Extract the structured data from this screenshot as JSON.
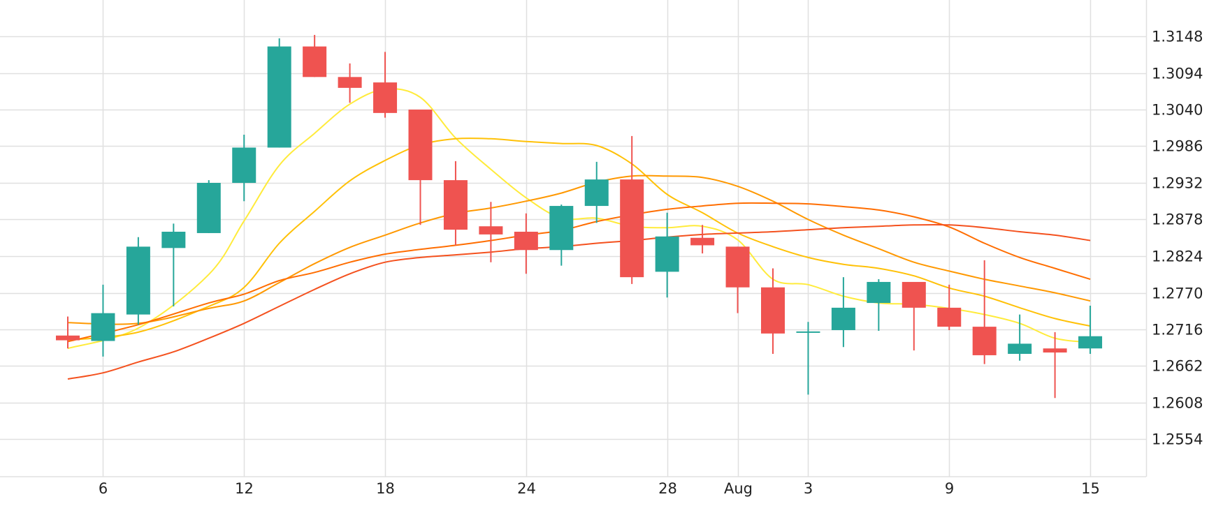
{
  "chart_data": {
    "type": "candlestick",
    "title": "",
    "xlabel": "",
    "ylabel": "",
    "ylim": [
      1.25,
      1.319
    ],
    "y_ticks": [
      "1.3148",
      "1.3094",
      "1.3040",
      "1.2986",
      "1.2932",
      "1.2878",
      "1.2824",
      "1.2770",
      "1.2716",
      "1.2662",
      "1.2608",
      "1.2554"
    ],
    "x_ticks": [
      {
        "i": 1,
        "label": "6"
      },
      {
        "i": 5,
        "label": "12"
      },
      {
        "i": 9,
        "label": "18"
      },
      {
        "i": 13,
        "label": "24"
      },
      {
        "i": 17,
        "label": "28"
      },
      {
        "i": 19,
        "label": "Aug"
      },
      {
        "i": 21,
        "label": "3"
      },
      {
        "i": 25,
        "label": "9"
      },
      {
        "i": 29,
        "label": "15"
      }
    ],
    "grid": true,
    "colors": {
      "up": "#26a69a",
      "down": "#ef5350",
      "grid": "#e0e0e0"
    },
    "candles": [
      {
        "o": 1.2707,
        "h": 1.2735,
        "l": 1.2688,
        "c": 1.27
      },
      {
        "o": 1.2699,
        "h": 1.2782,
        "l": 1.2676,
        "c": 1.274
      },
      {
        "o": 1.2738,
        "h": 1.2852,
        "l": 1.2723,
        "c": 1.2838
      },
      {
        "o": 1.2836,
        "h": 1.2872,
        "l": 1.275,
        "c": 1.286
      },
      {
        "o": 1.2858,
        "h": 1.2936,
        "l": 1.2858,
        "c": 1.2932
      },
      {
        "o": 1.2932,
        "h": 1.3003,
        "l": 1.2905,
        "c": 1.2984
      },
      {
        "o": 1.2984,
        "h": 1.3145,
        "l": 1.2984,
        "c": 1.3133
      },
      {
        "o": 1.3133,
        "h": 1.315,
        "l": 1.3088,
        "c": 1.3088
      },
      {
        "o": 1.3088,
        "h": 1.3108,
        "l": 1.305,
        "c": 1.3072
      },
      {
        "o": 1.308,
        "h": 1.3125,
        "l": 1.3028,
        "c": 1.3035
      },
      {
        "o": 1.304,
        "h": 1.304,
        "l": 1.287,
        "c": 1.2936
      },
      {
        "o": 1.2936,
        "h": 1.2964,
        "l": 1.284,
        "c": 1.2863
      },
      {
        "o": 1.2868,
        "h": 1.2904,
        "l": 1.2815,
        "c": 1.2856
      },
      {
        "o": 1.286,
        "h": 1.2887,
        "l": 1.2798,
        "c": 1.2833
      },
      {
        "o": 1.2833,
        "h": 1.29,
        "l": 1.281,
        "c": 1.2898
      },
      {
        "o": 1.2898,
        "h": 1.2963,
        "l": 1.2873,
        "c": 1.2937
      },
      {
        "o": 1.2937,
        "h": 1.3001,
        "l": 1.2783,
        "c": 1.2793
      },
      {
        "o": 1.2801,
        "h": 1.2888,
        "l": 1.2763,
        "c": 1.2853
      },
      {
        "o": 1.2851,
        "h": 1.287,
        "l": 1.2828,
        "c": 1.284
      },
      {
        "o": 1.2838,
        "h": 1.2838,
        "l": 1.274,
        "c": 1.2778
      },
      {
        "o": 1.2778,
        "h": 1.2806,
        "l": 1.268,
        "c": 1.271
      },
      {
        "o": 1.2712,
        "h": 1.2727,
        "l": 1.262,
        "c": 1.2712
      },
      {
        "o": 1.2715,
        "h": 1.2793,
        "l": 1.269,
        "c": 1.2748
      },
      {
        "o": 1.2755,
        "h": 1.279,
        "l": 1.2714,
        "c": 1.2786
      },
      {
        "o": 1.2786,
        "h": 1.2786,
        "l": 1.2685,
        "c": 1.2748
      },
      {
        "o": 1.2748,
        "h": 1.2782,
        "l": 1.2715,
        "c": 1.272
      },
      {
        "o": 1.272,
        "h": 1.2818,
        "l": 1.2665,
        "c": 1.2678
      },
      {
        "o": 1.268,
        "h": 1.2738,
        "l": 1.267,
        "c": 1.2695
      },
      {
        "o": 1.2688,
        "h": 1.2712,
        "l": 1.2615,
        "c": 1.2682
      },
      {
        "o": 1.2688,
        "h": 1.2751,
        "l": 1.268,
        "c": 1.2706
      }
    ],
    "series": [
      {
        "color": "#ffeb3b",
        "values": [
          [
            0,
            1.2688
          ],
          [
            2,
            1.2718
          ],
          [
            4,
            1.2797
          ],
          [
            5,
            1.2876
          ],
          [
            6,
            1.2958
          ],
          [
            7,
            1.3005
          ],
          [
            8,
            1.3048
          ],
          [
            9,
            1.307
          ],
          [
            10,
            1.3058
          ],
          [
            11,
            1.2998
          ],
          [
            12,
            1.2952
          ],
          [
            13,
            1.291
          ],
          [
            14,
            1.288
          ],
          [
            15,
            1.288
          ],
          [
            16,
            1.2868
          ],
          [
            17,
            1.2866
          ],
          [
            18,
            1.2868
          ],
          [
            19,
            1.2848
          ],
          [
            20,
            1.279
          ],
          [
            21,
            1.2782
          ],
          [
            22,
            1.2765
          ],
          [
            23,
            1.2755
          ],
          [
            24,
            1.2753
          ],
          [
            25,
            1.2747
          ],
          [
            26,
            1.2738
          ],
          [
            27,
            1.2725
          ],
          [
            28,
            1.2703
          ],
          [
            29,
            1.2697
          ]
        ]
      },
      {
        "color": "#ffc107",
        "values": [
          [
            0,
            1.27
          ],
          [
            2,
            1.2712
          ],
          [
            4,
            1.275
          ],
          [
            5,
            1.2778
          ],
          [
            6,
            1.2843
          ],
          [
            7,
            1.289
          ],
          [
            8,
            1.2935
          ],
          [
            9,
            1.2965
          ],
          [
            10,
            1.2988
          ],
          [
            11,
            1.2997
          ],
          [
            12,
            1.2997
          ],
          [
            13,
            1.2993
          ],
          [
            14,
            1.299
          ],
          [
            15,
            1.2987
          ],
          [
            16,
            1.296
          ],
          [
            17,
            1.2915
          ],
          [
            18,
            1.2888
          ],
          [
            19,
            1.2858
          ],
          [
            20,
            1.2838
          ],
          [
            21,
            1.2822
          ],
          [
            22,
            1.2812
          ],
          [
            23,
            1.2806
          ],
          [
            24,
            1.2795
          ],
          [
            25,
            1.2777
          ],
          [
            26,
            1.2765
          ],
          [
            27,
            1.2748
          ],
          [
            28,
            1.2732
          ],
          [
            29,
            1.2721
          ]
        ]
      },
      {
        "color": "#ff9800",
        "values": [
          [
            0,
            1.2726
          ],
          [
            2,
            1.2725
          ],
          [
            4,
            1.2747
          ],
          [
            5,
            1.2758
          ],
          [
            6,
            1.2785
          ],
          [
            7,
            1.2813
          ],
          [
            8,
            1.2837
          ],
          [
            9,
            1.2855
          ],
          [
            10,
            1.2873
          ],
          [
            11,
            1.2887
          ],
          [
            12,
            1.2895
          ],
          [
            13,
            1.2905
          ],
          [
            14,
            1.2917
          ],
          [
            15,
            1.2933
          ],
          [
            16,
            1.2942
          ],
          [
            17,
            1.2942
          ],
          [
            18,
            1.294
          ],
          [
            19,
            1.2927
          ],
          [
            20,
            1.2905
          ],
          [
            21,
            1.2878
          ],
          [
            22,
            1.2855
          ],
          [
            23,
            1.2835
          ],
          [
            24,
            1.2815
          ],
          [
            25,
            1.2802
          ],
          [
            26,
            1.279
          ],
          [
            27,
            1.278
          ],
          [
            28,
            1.277
          ],
          [
            29,
            1.2758
          ]
        ]
      },
      {
        "color": "#ff6d00",
        "values": [
          [
            0,
            1.2698
          ],
          [
            2,
            1.2723
          ],
          [
            4,
            1.2755
          ],
          [
            5,
            1.2768
          ],
          [
            6,
            1.2788
          ],
          [
            7,
            1.28
          ],
          [
            8,
            1.2815
          ],
          [
            9,
            1.2827
          ],
          [
            10,
            1.2834
          ],
          [
            11,
            1.284
          ],
          [
            12,
            1.2847
          ],
          [
            13,
            1.2855
          ],
          [
            14,
            1.2862
          ],
          [
            15,
            1.2875
          ],
          [
            16,
            1.2885
          ],
          [
            17,
            1.2893
          ],
          [
            18,
            1.2898
          ],
          [
            19,
            1.2902
          ],
          [
            20,
            1.2902
          ],
          [
            21,
            1.2901
          ],
          [
            22,
            1.2897
          ],
          [
            23,
            1.2892
          ],
          [
            24,
            1.2882
          ],
          [
            25,
            1.2867
          ],
          [
            26,
            1.2843
          ],
          [
            27,
            1.2822
          ],
          [
            28,
            1.2806
          ],
          [
            29,
            1.279
          ]
        ]
      },
      {
        "color": "#f4511e",
        "values": [
          [
            0,
            1.2643
          ],
          [
            1,
            1.2652
          ],
          [
            2,
            1.2668
          ],
          [
            3,
            1.2683
          ],
          [
            4,
            1.2703
          ],
          [
            5,
            1.2725
          ],
          [
            6,
            1.275
          ],
          [
            7,
            1.2775
          ],
          [
            8,
            1.2798
          ],
          [
            9,
            1.2815
          ],
          [
            10,
            1.2822
          ],
          [
            11,
            1.2826
          ],
          [
            12,
            1.283
          ],
          [
            13,
            1.2835
          ],
          [
            14,
            1.2838
          ],
          [
            15,
            1.2843
          ],
          [
            16,
            1.2847
          ],
          [
            17,
            1.2852
          ],
          [
            18,
            1.2856
          ],
          [
            19,
            1.2858
          ],
          [
            20,
            1.286
          ],
          [
            21,
            1.2863
          ],
          [
            22,
            1.2866
          ],
          [
            23,
            1.2868
          ],
          [
            24,
            1.287
          ],
          [
            25,
            1.287
          ],
          [
            26,
            1.2866
          ],
          [
            27,
            1.286
          ],
          [
            28,
            1.2855
          ],
          [
            29,
            1.2847
          ]
        ]
      }
    ]
  }
}
